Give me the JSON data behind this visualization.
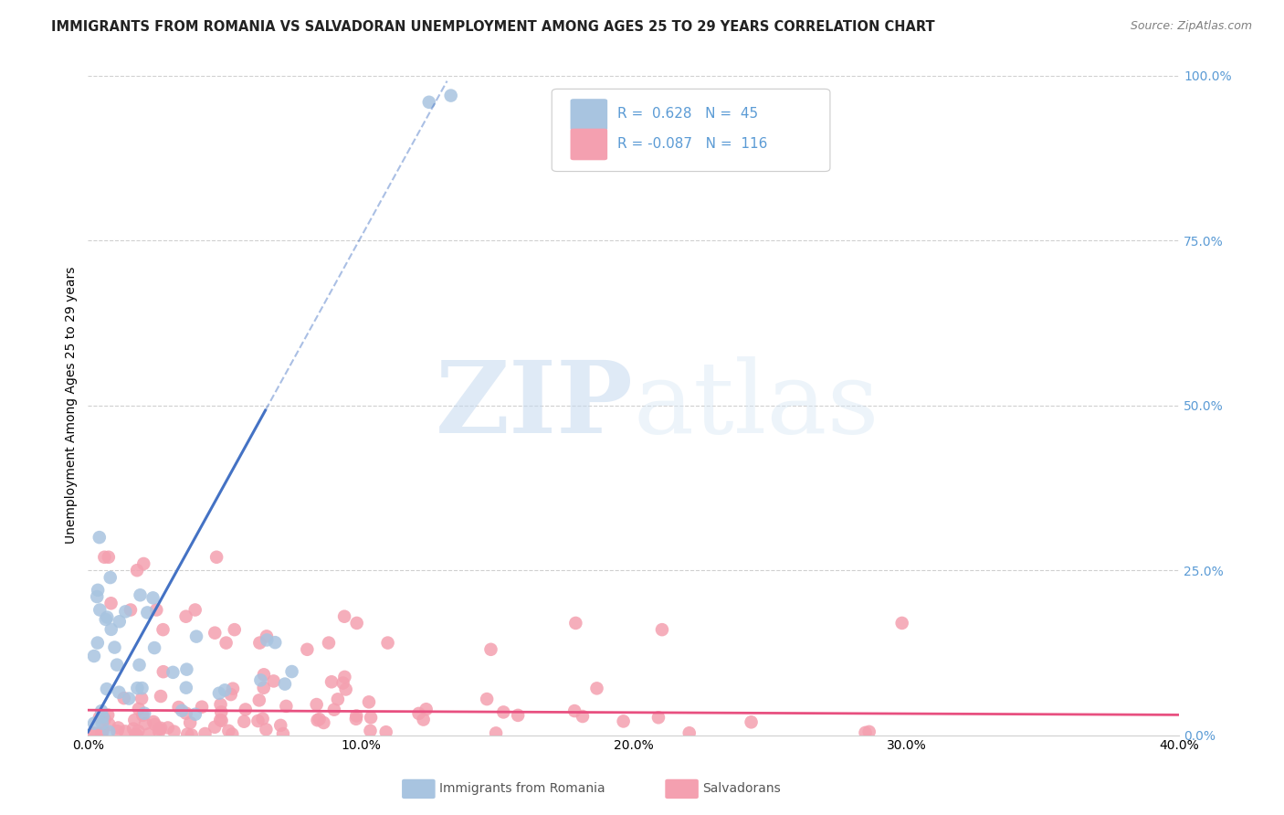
{
  "title": "IMMIGRANTS FROM ROMANIA VS SALVADORAN UNEMPLOYMENT AMONG AGES 25 TO 29 YEARS CORRELATION CHART",
  "source": "Source: ZipAtlas.com",
  "ylabel": "Unemployment Among Ages 25 to 29 years",
  "xlabel_ticks": [
    "0.0%",
    "10.0%",
    "20.0%",
    "30.0%",
    "40.0%"
  ],
  "xlabel_vals": [
    0.0,
    0.1,
    0.2,
    0.3,
    0.4
  ],
  "ylabel_right_ticks": [
    "100.0%",
    "75.0%",
    "50.0%",
    "25.0%",
    "0.0%"
  ],
  "ylabel_right_vals": [
    1.0,
    0.75,
    0.5,
    0.25,
    0.0
  ],
  "xlim": [
    0.0,
    0.4
  ],
  "ylim": [
    0.0,
    1.0
  ],
  "romania_R": 0.628,
  "romania_N": 45,
  "salvador_R": -0.087,
  "salvador_N": 116,
  "legend_label1": "Immigrants from Romania",
  "legend_label2": "Salvadorans",
  "watermark_zip": "ZIP",
  "watermark_atlas": "atlas",
  "romania_color": "#a8c4e0",
  "salvador_color": "#f4a0b0",
  "romania_line_color": "#4472c4",
  "salvador_line_color": "#e85080",
  "grid_color": "#d0d0d0",
  "background": "#ffffff",
  "title_fontsize": 10.5,
  "axis_fontsize": 10,
  "right_axis_color": "#5b9bd5"
}
